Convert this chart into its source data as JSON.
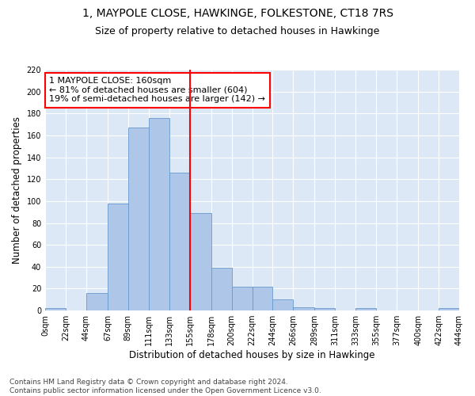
{
  "title": "1, MAYPOLE CLOSE, HAWKINGE, FOLKESTONE, CT18 7RS",
  "subtitle": "Size of property relative to detached houses in Hawkinge",
  "xlabel": "Distribution of detached houses by size in Hawkinge",
  "ylabel": "Number of detached properties",
  "footer_line1": "Contains HM Land Registry data © Crown copyright and database right 2024.",
  "footer_line2": "Contains public sector information licensed under the Open Government Licence v3.0.",
  "bin_edges": [
    0,
    22,
    44,
    67,
    89,
    111,
    133,
    155,
    178,
    200,
    222,
    244,
    266,
    289,
    311,
    333,
    355,
    377,
    400,
    422,
    444
  ],
  "bar_heights": [
    2,
    0,
    16,
    98,
    167,
    176,
    126,
    89,
    39,
    22,
    22,
    10,
    3,
    2,
    0,
    2,
    0,
    0,
    0,
    2
  ],
  "bar_color": "#aec6e8",
  "bar_edge_color": "#6699cc",
  "vline_x": 155,
  "vline_color": "red",
  "annotation_title": "1 MAYPOLE CLOSE: 160sqm",
  "annotation_line1": "← 81% of detached houses are smaller (604)",
  "annotation_line2": "19% of semi-detached houses are larger (142) →",
  "annotation_box_color": "red",
  "ylim": [
    0,
    220
  ],
  "yticks": [
    0,
    20,
    40,
    60,
    80,
    100,
    120,
    140,
    160,
    180,
    200,
    220
  ],
  "tick_labels": [
    "0sqm",
    "22sqm",
    "44sqm",
    "67sqm",
    "89sqm",
    "111sqm",
    "133sqm",
    "155sqm",
    "178sqm",
    "200sqm",
    "222sqm",
    "244sqm",
    "266sqm",
    "289sqm",
    "311sqm",
    "333sqm",
    "355sqm",
    "377sqm",
    "400sqm",
    "422sqm",
    "444sqm"
  ],
  "background_color": "#dce8f5",
  "grid_color": "white",
  "title_fontsize": 10,
  "subtitle_fontsize": 9,
  "axis_label_fontsize": 8.5,
  "tick_fontsize": 7,
  "annotation_fontsize": 8,
  "footer_fontsize": 6.5
}
